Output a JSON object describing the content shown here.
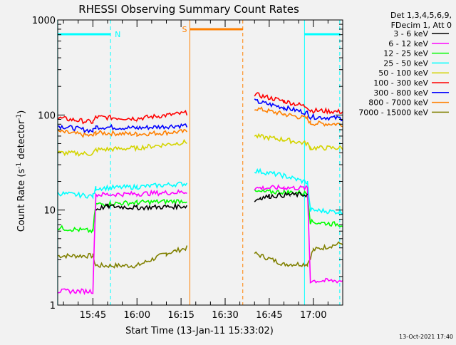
{
  "chart_data": {
    "type": "line",
    "title": "RHESSI Observing Summary Count Rates",
    "xlabel": "Start Time (13-Jan-11 15:33:02)",
    "ylabel_main": "Count Rate (s",
    "ylabel_sup1": "-1",
    "ylabel_mid": " detector",
    "ylabel_sup2": "-1",
    "ylabel_end": ")",
    "y_scale": "log",
    "ylim": [
      1,
      1000
    ],
    "xlim": [
      "15:33:02",
      "17:10:00"
    ],
    "x_ticks": [
      "15:45",
      "16:00",
      "16:15",
      "16:30",
      "16:45",
      "17:00"
    ],
    "y_ticks": [
      "1",
      "10",
      "100",
      "1000"
    ],
    "legend_header": [
      "Det 1,3,4,5,6,9,",
      "FDecim 1, Att 0"
    ],
    "legend_position": "top-right",
    "footer_date": "13-Oct-2021 17:40",
    "annotations": {
      "night_label": "N",
      "saa_label": "S"
    },
    "series": [
      {
        "name": "3 - 6 keV",
        "color": "#000000",
        "seg1": [
          [
            "15:33",
            null
          ],
          [
            "15:45",
            null
          ],
          [
            "15:46",
            10.2
          ],
          [
            "15:50",
            11.0
          ],
          [
            "16:00",
            10.6
          ],
          [
            "16:10",
            10.8
          ],
          [
            "16:17",
            11.0
          ]
        ],
        "seg2": [
          [
            "16:40",
            12.5
          ],
          [
            "16:42",
            13.5
          ],
          [
            "16:45",
            14.0
          ],
          [
            "16:52",
            14.5
          ],
          [
            "16:58",
            14.5
          ]
        ]
      },
      {
        "name": "6 - 12 keV",
        "color": "#ff00ff",
        "seg1": [
          [
            "15:33",
            1.4
          ],
          [
            "15:45",
            1.4
          ],
          [
            "15:46",
            14.5
          ],
          [
            "16:00",
            14.8
          ],
          [
            "16:17",
            15.5
          ]
        ],
        "seg2": [
          [
            "16:40",
            17.0
          ],
          [
            "16:50",
            17.2
          ],
          [
            "16:58",
            17.0
          ],
          [
            "16:59",
            1.8
          ],
          [
            "17:10",
            1.8
          ]
        ]
      },
      {
        "name": "12 - 25 keV",
        "color": "#00ff00",
        "seg1": [
          [
            "15:33",
            6.5
          ],
          [
            "15:45",
            6.0
          ],
          [
            "15:46",
            11.5
          ],
          [
            "16:00",
            12.0
          ],
          [
            "16:17",
            12.5
          ]
        ],
        "seg2": [
          [
            "16:40",
            15.5
          ],
          [
            "16:50",
            15.5
          ],
          [
            "16:58",
            15.0
          ],
          [
            "16:59",
            7.5
          ],
          [
            "17:10",
            7.0
          ]
        ]
      },
      {
        "name": "25 - 50 keV",
        "color": "#00ffff",
        "seg1": [
          [
            "15:33",
            15.0
          ],
          [
            "15:45",
            14.0
          ],
          [
            "15:46",
            17.0
          ],
          [
            "16:00",
            17.5
          ],
          [
            "16:17",
            19.0
          ]
        ],
        "seg2": [
          [
            "16:40",
            26.0
          ],
          [
            "16:50",
            23.0
          ],
          [
            "16:58",
            19.5
          ],
          [
            "16:59",
            10.0
          ],
          [
            "17:10",
            9.5
          ]
        ]
      },
      {
        "name": "50 - 100 keV",
        "color": "#d4d400",
        "seg1": [
          [
            "15:33",
            40.0
          ],
          [
            "15:45",
            39.0
          ],
          [
            "15:46",
            43.0
          ],
          [
            "16:00",
            45.0
          ],
          [
            "16:17",
            52.0
          ]
        ],
        "seg2": [
          [
            "16:40",
            60.0
          ],
          [
            "16:50",
            55.0
          ],
          [
            "16:58",
            50.0
          ],
          [
            "16:59",
            45.0
          ],
          [
            "17:10",
            45.0
          ]
        ]
      },
      {
        "name": "100 - 300 keV",
        "color": "#ff0000",
        "seg1": [
          [
            "15:33",
            93.0
          ],
          [
            "15:45",
            84.0
          ],
          [
            "15:46",
            95.0
          ],
          [
            "16:00",
            92.0
          ],
          [
            "16:17",
            105.0
          ]
        ],
        "seg2": [
          [
            "16:40",
            165.0
          ],
          [
            "16:50",
            140.0
          ],
          [
            "16:58",
            122.0
          ],
          [
            "16:59",
            112.0
          ],
          [
            "17:10",
            108.0
          ]
        ]
      },
      {
        "name": "300 - 800 keV",
        "color": "#0000ff",
        "seg1": [
          [
            "15:33",
            77.0
          ],
          [
            "15:45",
            68.0
          ],
          [
            "15:46",
            75.0
          ],
          [
            "16:00",
            73.0
          ],
          [
            "16:17",
            78.0
          ]
        ],
        "seg2": [
          [
            "16:40",
            140.0
          ],
          [
            "16:50",
            120.0
          ],
          [
            "16:58",
            105.0
          ],
          [
            "16:59",
            96.0
          ],
          [
            "17:10",
            92.0
          ]
        ]
      },
      {
        "name": "800 - 7000 keV",
        "color": "#ff8000",
        "seg1": [
          [
            "15:33",
            67.0
          ],
          [
            "15:45",
            60.0
          ],
          [
            "15:46",
            65.0
          ],
          [
            "16:00",
            63.0
          ],
          [
            "16:17",
            67.0
          ]
        ],
        "seg2": [
          [
            "16:40",
            118.0
          ],
          [
            "16:50",
            102.0
          ],
          [
            "16:58",
            92.0
          ],
          [
            "16:59",
            82.0
          ],
          [
            "17:10",
            80.0
          ]
        ]
      },
      {
        "name": "7000 - 15000 keV",
        "color": "#808000",
        "seg1": [
          [
            "15:33",
            3.3
          ],
          [
            "15:45",
            3.3
          ],
          [
            "15:46",
            2.6
          ],
          [
            "16:00",
            2.6
          ],
          [
            "16:10",
            3.5
          ],
          [
            "16:17",
            4.0
          ]
        ],
        "seg2": [
          [
            "16:40",
            3.5
          ],
          [
            "16:50",
            2.7
          ],
          [
            "16:58",
            2.7
          ],
          [
            "17:00",
            3.8
          ],
          [
            "17:10",
            4.5
          ]
        ]
      }
    ],
    "night_segments": [
      [
        "15:33",
        "15:51"
      ],
      [
        "16:57",
        "17:09"
      ]
    ],
    "saa_segment": [
      "16:18",
      "16:36"
    ],
    "night_color": "#00ffff",
    "saa_color": "#ff8000"
  }
}
